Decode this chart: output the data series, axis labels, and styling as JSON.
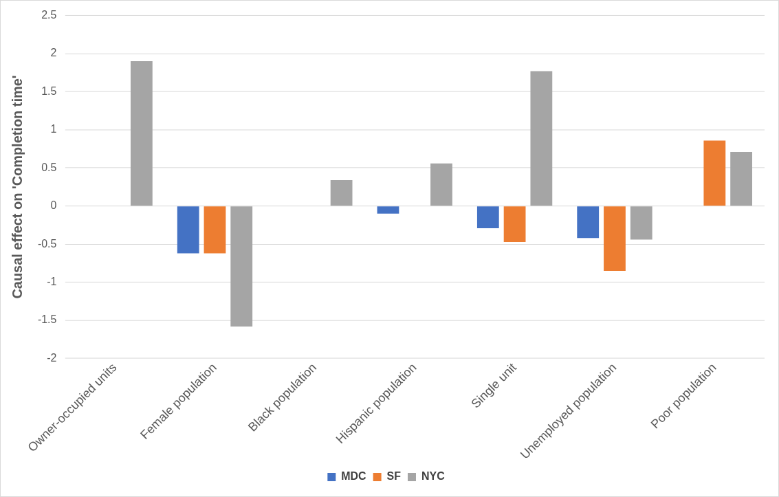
{
  "chart_data": {
    "type": "bar",
    "ylabel": "Causal effect on 'Completion time'",
    "categories": [
      "Owner-occupied units",
      "Female population",
      "Black population",
      "Hispanic population",
      "Single unit",
      "Unemployed population",
      "Poor population"
    ],
    "series": [
      {
        "name": "MDC",
        "color": "#4472c4",
        "values": [
          null,
          -0.62,
          null,
          -0.1,
          -0.29,
          -0.42,
          null
        ]
      },
      {
        "name": "SF",
        "color": "#ed7d31",
        "values": [
          null,
          -0.62,
          null,
          null,
          -0.47,
          -0.85,
          0.86
        ]
      },
      {
        "name": "NYC",
        "color": "#a5a5a5",
        "values": [
          1.9,
          -1.58,
          0.34,
          0.56,
          1.77,
          -0.44,
          0.71
        ]
      }
    ],
    "ylim": [
      -2,
      2.5
    ],
    "yticks": [
      -2,
      -1.5,
      -1,
      -0.5,
      0,
      0.5,
      1,
      1.5,
      2,
      2.5
    ],
    "grid": "y",
    "legend": "bottom"
  }
}
